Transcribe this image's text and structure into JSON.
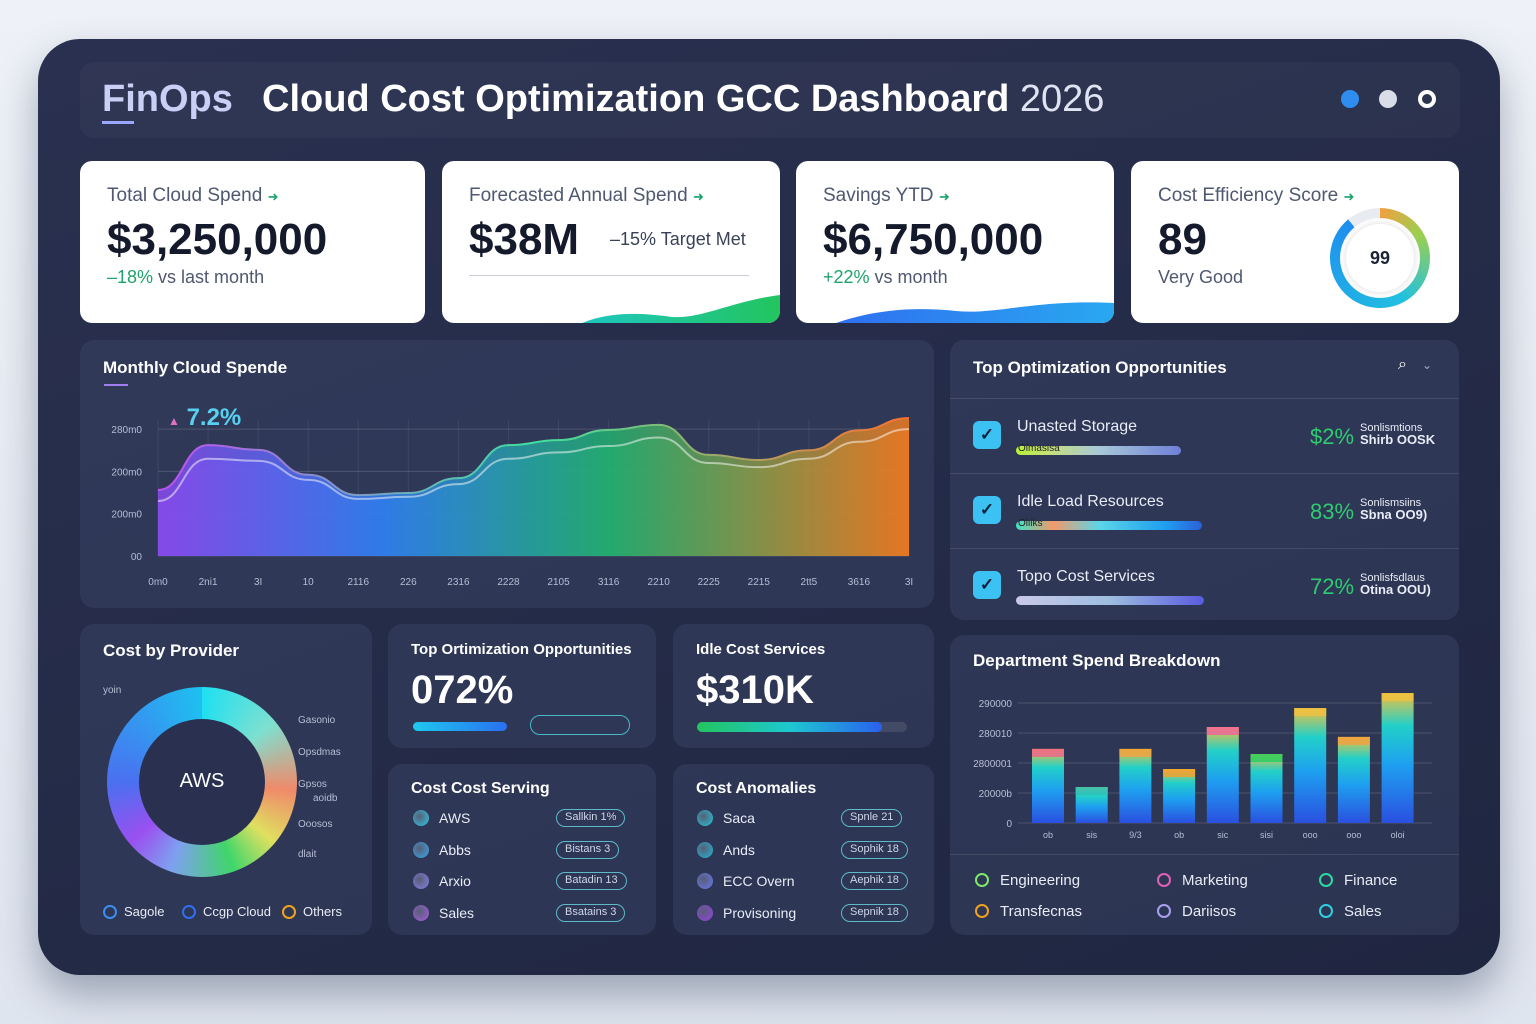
{
  "header": {
    "brand": "FinOps",
    "title": "Cloud Cost Optimization GCC Dashboard",
    "year": "2026",
    "dots": [
      "#2f8df0",
      "#d9dde8",
      "#ffffff"
    ]
  },
  "kpis": [
    {
      "label": "Total Cloud Spend",
      "value": "$3,250,000",
      "sub": "–18%",
      "sub_rest": " vs last month"
    },
    {
      "label": "Forecasted Annual Spend",
      "value": "$38M",
      "sub": "–15% Target Met"
    },
    {
      "label": "Savings YTD",
      "value": "$6,750,000",
      "sub": "+22%",
      "sub_rest": " vs month"
    },
    {
      "label": "Cost Efficiency Score",
      "value": "89",
      "sub": "Very Good",
      "gauge_text": "99",
      "score": 89
    }
  ],
  "monthly": {
    "title": "Monthly Cloud Spende",
    "badge": "7.2%"
  },
  "chart_data": [
    {
      "type": "area",
      "title": "Monthly Cloud Spende",
      "y_tick_labels": [
        "00",
        "200m0",
        "200m0",
        "280m0"
      ],
      "x_tick_labels": [
        "0m0",
        "2ni1",
        "3I",
        "10",
        "2116",
        "226",
        "2316",
        "2228",
        "2105",
        "3116",
        "2210",
        "2225",
        "2215",
        "2tt5",
        "3616",
        "3I"
      ],
      "ylim": [
        0,
        3.2
      ],
      "grid": true,
      "series": [
        {
          "values": [
            1.56,
            2.62,
            2.51,
            1.92,
            1.44,
            1.49,
            1.84,
            2.62,
            2.74,
            2.98,
            3.1,
            2.39,
            2.27,
            2.5,
            2.97,
            3.26
          ]
        },
        {
          "values": [
            1.3,
            2.3,
            2.25,
            1.8,
            1.35,
            1.4,
            1.7,
            2.3,
            2.45,
            2.6,
            2.8,
            2.2,
            2.1,
            2.3,
            2.7,
            3.0
          ]
        }
      ]
    },
    {
      "type": "bar",
      "title": "Department Spend Breakdown",
      "y_tick_labels": [
        "0",
        "20000b",
        "2800001",
        "280010",
        "290000"
      ],
      "categories": [
        "ob",
        "sis",
        "9/3",
        "ob",
        "sic",
        "sisi",
        "ooo",
        "ooo",
        "oloi"
      ],
      "values": [
        2.47,
        1.2,
        2.47,
        1.8,
        3.2,
        2.3,
        3.83,
        2.87,
        4.33
      ],
      "ylim": [
        0,
        4.5
      ],
      "grid": true
    }
  ],
  "opportunities": {
    "title": "Top Optimization Opportunities",
    "items": [
      {
        "name": "Unasted Storage",
        "bar_label": "Olmasisa",
        "pct": "$2%",
        "t1": "Sonlismtions",
        "t2": "Shirb OOSK",
        "fill": 0.9,
        "grad": "linear-gradient(90deg,#b7f03a,#c5e07a 20%,#a9c8d8 50%,#6f7fd8)"
      },
      {
        "name": "Idle Load Resources",
        "bar_label": "Oliiks",
        "pct": "83%",
        "t1": "Sonlismsiins",
        "t2": "Sbna OO9)",
        "fill": 1,
        "grad": "linear-gradient(90deg,#3de0c4,#f29a6a 20%,#5bd5e8 45%,#1f9ff0 80%,#2a60d8)"
      },
      {
        "name": "Topo Cost Services",
        "bar_label": "",
        "pct": "72%",
        "t1": "Sonlisfsdlaus",
        "t2": "Otina OOU)",
        "fill": 1,
        "grad": "linear-gradient(90deg,#c9c9e8,#9dbde0 50%,#5a5be0)"
      }
    ]
  },
  "provider": {
    "title": "Cost by Provider",
    "center": "AWS",
    "top_label": "yoin",
    "callouts": [
      "Gasonio",
      "Opsdmas",
      "Gpsos",
      "aoidb",
      "Ooosos",
      "dlait"
    ],
    "legend": [
      {
        "label": "Sagole",
        "color": "#3c8df0"
      },
      {
        "label": "Ccgp Cloud",
        "color": "#2f6ff0"
      },
      {
        "label": "Others",
        "color": "#f0a21e"
      }
    ]
  },
  "opp_small": {
    "title": "Top Ortimization Opportunities",
    "value": "072%",
    "fill": 0.72
  },
  "idle": {
    "title": "Idle Cost Services",
    "value": "$310K",
    "fill": 0.88
  },
  "serving": {
    "title": "Cost Cost Serving",
    "items": [
      {
        "name": "AWS",
        "pill": "Sallkin 1%",
        "color": "#2fc8e8"
      },
      {
        "name": "Abbs",
        "pill": "Bistans 3",
        "color": "#38a8e8"
      },
      {
        "name": "Arxio",
        "pill": "Batadin 13",
        "color": "#8a7ee8"
      },
      {
        "name": "Sales",
        "pill": "Bsatains 3",
        "color": "#a45ee0"
      }
    ]
  },
  "anomalies": {
    "title": "Cost Anomalies",
    "items": [
      {
        "name": "Saca",
        "pill": "Spnle 21",
        "color": "#22c6d8"
      },
      {
        "name": "Ands",
        "pill": "Sophik 18",
        "color": "#22b8d8"
      },
      {
        "name": "ECC Overn",
        "pill": "Aephik 18",
        "color": "#6a78f0"
      },
      {
        "name": "Provisoning",
        "pill": "Sepnik 18",
        "color": "#9a40e8"
      }
    ]
  },
  "department": {
    "title": "Department Spend Breakdown",
    "legend": [
      {
        "label": "Engineering",
        "color": "#7ee86a"
      },
      {
        "label": "Marketing",
        "color": "#e060b8"
      },
      {
        "label": "Finance",
        "color": "#2ed8a0"
      },
      {
        "label": "Transfecnas",
        "color": "#f0a21e"
      },
      {
        "label": "Dariisos",
        "color": "#a9a0f0"
      },
      {
        "label": "Sales",
        "color": "#2ed0e0"
      }
    ]
  }
}
